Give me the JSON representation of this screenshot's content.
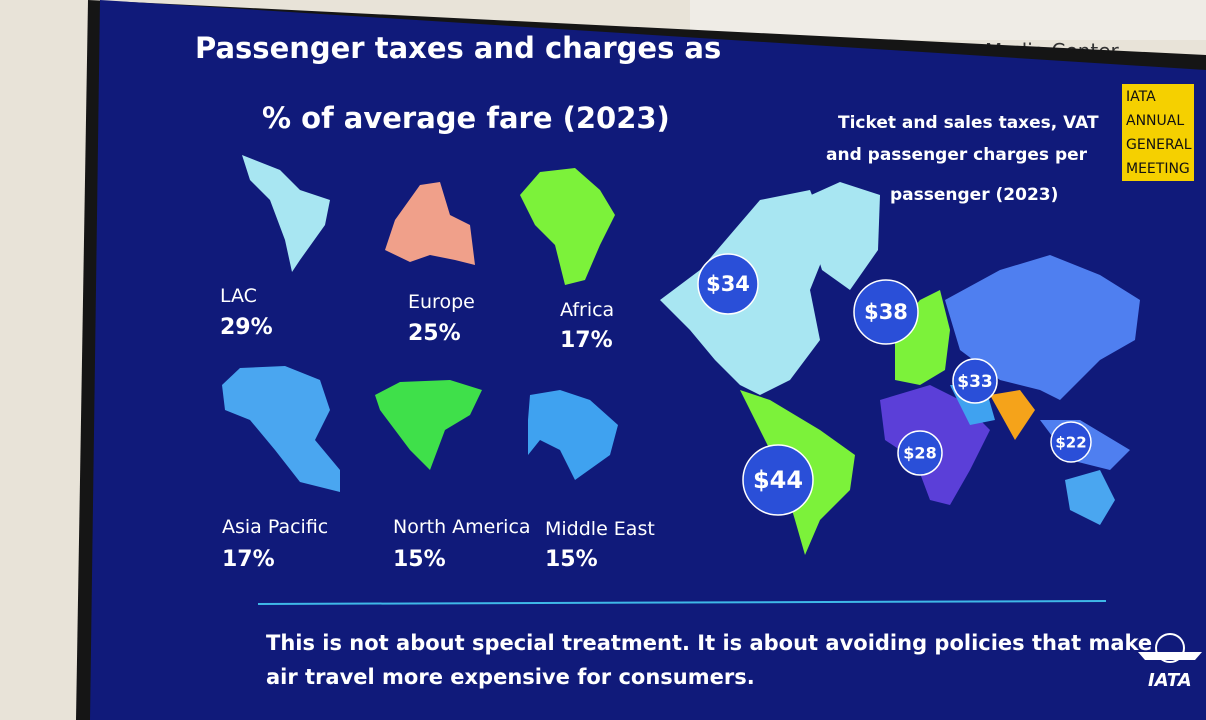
{
  "room_sign": "Media Center",
  "header": {
    "title_lines": [
      "Passenger taxes and charges as",
      "% of average fare (2023)"
    ]
  },
  "regions": [
    {
      "name": "LAC",
      "share": "29%"
    },
    {
      "name": "Europe",
      "share": "25%"
    },
    {
      "name": "Africa",
      "share": "17%"
    },
    {
      "name": "Asia Pacific",
      "share": "17%"
    },
    {
      "name": "North America",
      "share": "15%"
    },
    {
      "name": "Middle East",
      "share": "15%"
    }
  ],
  "map": {
    "title_lines": [
      "Ticket and sales taxes, VAT",
      "and passenger charges per",
      "passenger (2023)"
    ],
    "bubbles": [
      "$34",
      "$38",
      "$33",
      "$44",
      "$28",
      "$22"
    ]
  },
  "badge": {
    "lines": [
      "IATA",
      "ANNUAL",
      "GENERAL",
      "MEETING"
    ]
  },
  "footer": {
    "lines": [
      "This is not about special treatment. It is about avoiding policies that make",
      "air travel more expensive for consumers."
    ]
  },
  "logo": "IATA"
}
